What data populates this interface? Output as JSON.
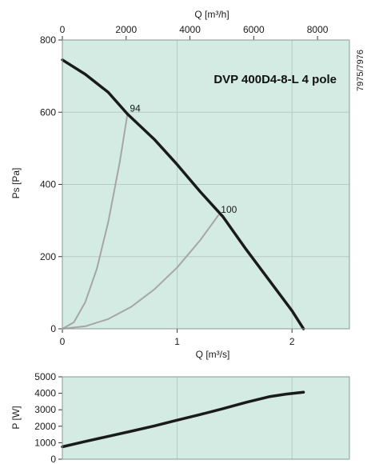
{
  "colors": {
    "plot_bg": "#d3ebe3",
    "grid": "#b9c9c4",
    "fan_curve": "#1a1a1a",
    "system_curve": "#a6a6a6"
  },
  "side_code": "7975/7976",
  "chart_data": [
    {
      "type": "line",
      "title": "DVP 400D4-8-L 4 pole",
      "xlabel": "Q [m³/s]",
      "ylabel": "Ps [Pa]",
      "secondary_xlabel": "Q [m³/h]",
      "xlim": [
        0,
        2.5
      ],
      "ylim": [
        0,
        800
      ],
      "secondary_xlim": [
        0,
        9000
      ],
      "x_ticks": [
        0,
        1,
        2
      ],
      "y_ticks": [
        0,
        200,
        400,
        600,
        800
      ],
      "secondary_x_ticks": [
        0,
        2000,
        4000,
        6000,
        8000
      ],
      "grid": true,
      "series": [
        {
          "role": "fan",
          "x": [
            0,
            0.2,
            0.4,
            0.567,
            0.8,
            1.0,
            1.2,
            1.4,
            1.6,
            1.8,
            2.0,
            2.1
          ],
          "y": [
            745,
            705,
            655,
            595,
            525,
            455,
            380,
            310,
            220,
            135,
            50,
            0
          ]
        },
        {
          "role": "system",
          "name": "94",
          "x": [
            0,
            0.1,
            0.2,
            0.3,
            0.4,
            0.5,
            0.567
          ],
          "y": [
            0,
            18,
            74,
            166,
            296,
            462,
            595
          ]
        },
        {
          "role": "system",
          "name": "100",
          "x": [
            0,
            0.2,
            0.4,
            0.6,
            0.8,
            1.0,
            1.2,
            1.36
          ],
          "y": [
            0,
            7,
            27,
            61,
            109,
            170,
            245,
            315
          ]
        }
      ],
      "point_labels": [
        {
          "text": "94",
          "x": 0.567,
          "y": 595
        },
        {
          "text": "100",
          "x": 1.36,
          "y": 315
        }
      ]
    },
    {
      "type": "line",
      "ylabel": "P [W]",
      "xlim": [
        0,
        2.5
      ],
      "ylim": [
        0,
        5000
      ],
      "y_ticks": [
        0,
        1000,
        2000,
        3000,
        4000,
        5000
      ],
      "grid": true,
      "series": [
        {
          "role": "power",
          "x": [
            0,
            0.2,
            0.4,
            0.6,
            0.8,
            1.0,
            1.2,
            1.4,
            1.6,
            1.8,
            1.95,
            2.1
          ],
          "y": [
            750,
            1080,
            1390,
            1700,
            2020,
            2370,
            2710,
            3070,
            3450,
            3790,
            3950,
            4070
          ]
        }
      ]
    }
  ]
}
